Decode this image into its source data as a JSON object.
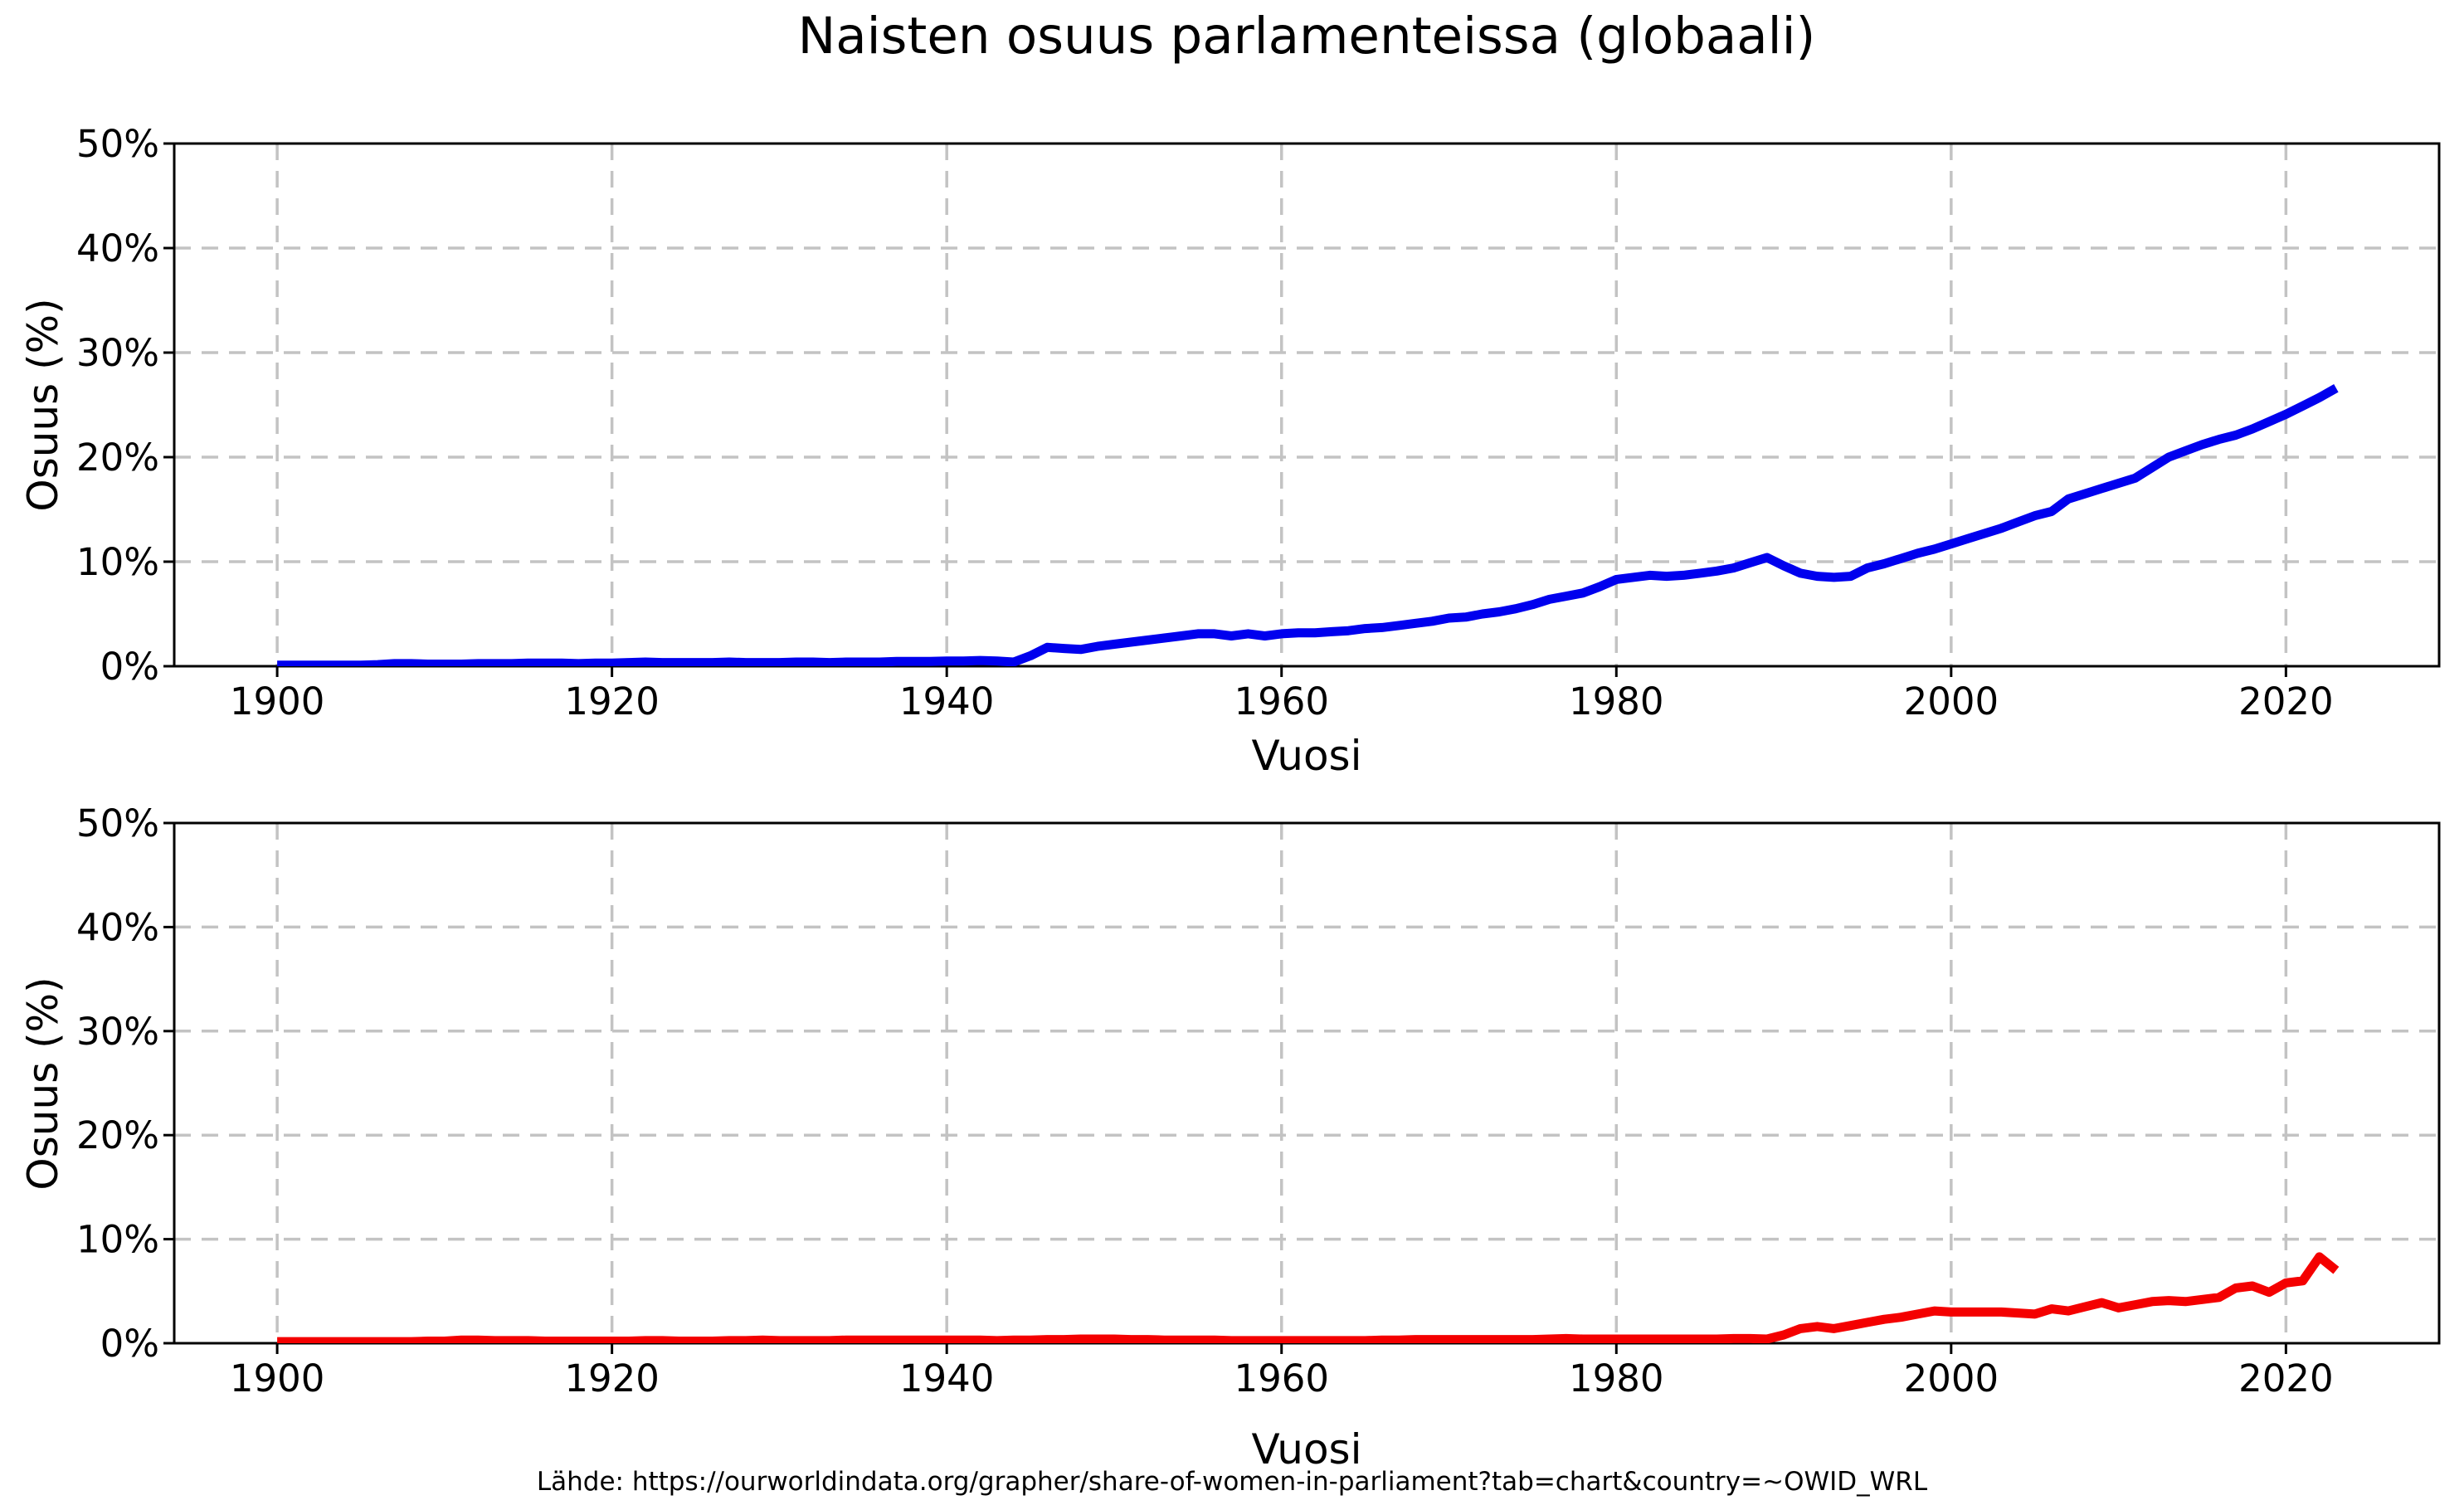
{
  "page": {
    "title": "Naisten osuus parlamenteissa (globaali)",
    "source": "Lähde: https://ourworldindata.org/grapher/share-of-women-in-parliament?tab=chart&country=~OWID_WRL"
  },
  "colors": {
    "top_line": "#0000ee",
    "bottom_line": "#f40000",
    "grid": "#c3c3c3",
    "axis": "#000000",
    "text": "#000000",
    "background": "#ffffff"
  },
  "chart_data": [
    {
      "type": "line",
      "position": "top",
      "title": "",
      "xlabel": "Vuosi",
      "ylabel": "Osuus (%)",
      "xlim": [
        1893.85,
        2029.15
      ],
      "ylim": [
        0,
        50
      ],
      "xticks": [
        1900,
        1920,
        1940,
        1960,
        1980,
        2000,
        2020
      ],
      "xtick_labels": [
        "1900",
        "1920",
        "1940",
        "1960",
        "1980",
        "2000",
        "2020"
      ],
      "yticks": [
        0,
        10,
        20,
        30,
        40,
        50
      ],
      "ytick_labels": [
        "0%",
        "10%",
        "20%",
        "30%",
        "40%",
        "50%"
      ],
      "grid": true,
      "legend": false,
      "color": "#0000ee",
      "x": [
        1900,
        1901,
        1902,
        1903,
        1904,
        1905,
        1906,
        1907,
        1908,
        1909,
        1910,
        1911,
        1912,
        1913,
        1914,
        1915,
        1916,
        1917,
        1918,
        1919,
        1920,
        1921,
        1922,
        1923,
        1924,
        1925,
        1926,
        1927,
        1928,
        1929,
        1930,
        1931,
        1932,
        1933,
        1934,
        1935,
        1936,
        1937,
        1938,
        1939,
        1940,
        1941,
        1942,
        1943,
        1944,
        1945,
        1946,
        1947,
        1948,
        1949,
        1950,
        1951,
        1952,
        1953,
        1954,
        1955,
        1956,
        1957,
        1958,
        1959,
        1960,
        1961,
        1962,
        1963,
        1964,
        1965,
        1966,
        1967,
        1968,
        1969,
        1970,
        1971,
        1972,
        1973,
        1974,
        1975,
        1976,
        1977,
        1978,
        1979,
        1980,
        1981,
        1982,
        1983,
        1984,
        1985,
        1986,
        1987,
        1988,
        1989,
        1990,
        1991,
        1992,
        1993,
        1994,
        1995,
        1996,
        1997,
        1998,
        1999,
        2000,
        2001,
        2002,
        2003,
        2004,
        2005,
        2006,
        2007,
        2008,
        2009,
        2010,
        2011,
        2012,
        2013,
        2014,
        2015,
        2016,
        2017,
        2018,
        2019,
        2020,
        2021,
        2022,
        2023
      ],
      "values": [
        0.1,
        0.1,
        0.1,
        0.1,
        0.1,
        0.1,
        0.15,
        0.25,
        0.25,
        0.2,
        0.2,
        0.2,
        0.25,
        0.25,
        0.25,
        0.3,
        0.3,
        0.3,
        0.25,
        0.3,
        0.3,
        0.35,
        0.4,
        0.35,
        0.35,
        0.35,
        0.35,
        0.4,
        0.35,
        0.35,
        0.35,
        0.4,
        0.4,
        0.35,
        0.4,
        0.4,
        0.4,
        0.45,
        0.45,
        0.45,
        0.5,
        0.5,
        0.55,
        0.5,
        0.4,
        1.0,
        1.8,
        1.7,
        1.6,
        1.9,
        2.1,
        2.3,
        2.5,
        2.7,
        2.9,
        3.1,
        3.1,
        2.9,
        3.1,
        2.9,
        3.1,
        3.2,
        3.2,
        3.3,
        3.4,
        3.6,
        3.7,
        3.9,
        4.1,
        4.3,
        4.6,
        4.7,
        5.0,
        5.2,
        5.5,
        5.9,
        6.4,
        6.7,
        7.0,
        7.6,
        8.3,
        8.5,
        8.7,
        8.6,
        8.7,
        8.9,
        9.1,
        9.4,
        9.9,
        10.4,
        9.6,
        8.9,
        8.6,
        8.5,
        8.6,
        9.4,
        9.8,
        10.3,
        10.8,
        11.2,
        11.7,
        12.2,
        12.7,
        13.2,
        13.8,
        14.4,
        14.8,
        16.0,
        16.5,
        17.0,
        17.5,
        18.0,
        19.0,
        20.0,
        20.6,
        21.2,
        21.7,
        22.1,
        22.7,
        23.4,
        24.1,
        24.9,
        25.7,
        26.6
      ]
    },
    {
      "type": "line",
      "position": "bottom",
      "title": "",
      "xlabel": "Vuosi",
      "ylabel": "Osuus (%)",
      "xlim": [
        1893.85,
        2029.15
      ],
      "ylim": [
        0,
        50
      ],
      "xticks": [
        1900,
        1920,
        1940,
        1960,
        1980,
        2000,
        2020
      ],
      "xtick_labels": [
        "1900",
        "1920",
        "1940",
        "1960",
        "1980",
        "2000",
        "2020"
      ],
      "yticks": [
        0,
        10,
        20,
        30,
        40,
        50
      ],
      "ytick_labels": [
        "0%",
        "10%",
        "20%",
        "30%",
        "40%",
        "50%"
      ],
      "grid": true,
      "legend": false,
      "color": "#f40000",
      "x": [
        1900,
        1901,
        1902,
        1903,
        1904,
        1905,
        1906,
        1907,
        1908,
        1909,
        1910,
        1911,
        1912,
        1913,
        1914,
        1915,
        1916,
        1917,
        1918,
        1919,
        1920,
        1921,
        1922,
        1923,
        1924,
        1925,
        1926,
        1927,
        1928,
        1929,
        1930,
        1931,
        1932,
        1933,
        1934,
        1935,
        1936,
        1937,
        1938,
        1939,
        1940,
        1941,
        1942,
        1943,
        1944,
        1945,
        1946,
        1947,
        1948,
        1949,
        1950,
        1951,
        1952,
        1953,
        1954,
        1955,
        1956,
        1957,
        1958,
        1959,
        1960,
        1961,
        1962,
        1963,
        1964,
        1965,
        1966,
        1967,
        1968,
        1969,
        1970,
        1971,
        1972,
        1973,
        1974,
        1975,
        1976,
        1977,
        1978,
        1979,
        1980,
        1981,
        1982,
        1983,
        1984,
        1985,
        1986,
        1987,
        1988,
        1989,
        1990,
        1991,
        1992,
        1993,
        1994,
        1995,
        1996,
        1997,
        1998,
        1999,
        2000,
        2001,
        2002,
        2003,
        2004,
        2005,
        2006,
        2007,
        2008,
        2009,
        2010,
        2011,
        2012,
        2013,
        2014,
        2015,
        2016,
        2017,
        2018,
        2019,
        2020,
        2021,
        2022,
        2023
      ],
      "values": [
        0.15,
        0.15,
        0.15,
        0.15,
        0.15,
        0.15,
        0.15,
        0.15,
        0.15,
        0.2,
        0.2,
        0.3,
        0.3,
        0.25,
        0.25,
        0.25,
        0.2,
        0.2,
        0.2,
        0.2,
        0.2,
        0.2,
        0.25,
        0.25,
        0.2,
        0.2,
        0.2,
        0.25,
        0.25,
        0.3,
        0.25,
        0.25,
        0.25,
        0.25,
        0.3,
        0.3,
        0.3,
        0.3,
        0.3,
        0.3,
        0.3,
        0.3,
        0.3,
        0.25,
        0.3,
        0.3,
        0.35,
        0.35,
        0.4,
        0.4,
        0.4,
        0.35,
        0.35,
        0.3,
        0.3,
        0.3,
        0.3,
        0.25,
        0.25,
        0.25,
        0.25,
        0.25,
        0.25,
        0.25,
        0.25,
        0.25,
        0.3,
        0.3,
        0.35,
        0.35,
        0.35,
        0.35,
        0.35,
        0.35,
        0.35,
        0.35,
        0.4,
        0.45,
        0.4,
        0.4,
        0.4,
        0.4,
        0.4,
        0.4,
        0.4,
        0.4,
        0.4,
        0.45,
        0.45,
        0.4,
        0.8,
        1.4,
        1.6,
        1.4,
        1.7,
        2.0,
        2.3,
        2.5,
        2.8,
        3.1,
        3.0,
        3.0,
        3.0,
        3.0,
        2.9,
        2.8,
        3.3,
        3.1,
        3.5,
        3.9,
        3.4,
        3.7,
        4.0,
        4.1,
        4.0,
        4.2,
        4.4,
        5.3,
        5.5,
        4.9,
        5.8,
        6.0,
        8.3,
        7.0
      ]
    }
  ]
}
